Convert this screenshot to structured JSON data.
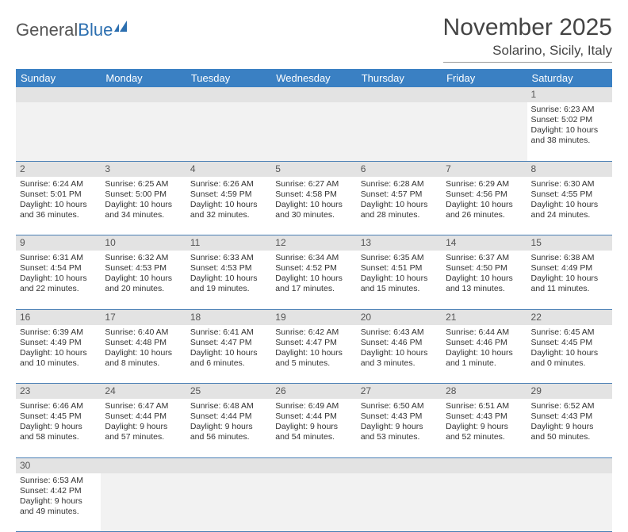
{
  "brand": {
    "part1": "General",
    "part2": "Blue"
  },
  "title": "November 2025",
  "subtitle": "Solarino, Sicily, Italy",
  "colors": {
    "header_bg": "#3a80c3",
    "header_fg": "#ffffff",
    "daynum_bg": "#e3e3e3",
    "rule": "#4a7fb5"
  },
  "daysOfWeek": [
    "Sunday",
    "Monday",
    "Tuesday",
    "Wednesday",
    "Thursday",
    "Friday",
    "Saturday"
  ],
  "weeks": [
    [
      null,
      null,
      null,
      null,
      null,
      null,
      {
        "n": "1",
        "sr": "6:23 AM",
        "ss": "5:02 PM",
        "dl": "10 hours and 38 minutes."
      }
    ],
    [
      {
        "n": "2",
        "sr": "6:24 AM",
        "ss": "5:01 PM",
        "dl": "10 hours and 36 minutes."
      },
      {
        "n": "3",
        "sr": "6:25 AM",
        "ss": "5:00 PM",
        "dl": "10 hours and 34 minutes."
      },
      {
        "n": "4",
        "sr": "6:26 AM",
        "ss": "4:59 PM",
        "dl": "10 hours and 32 minutes."
      },
      {
        "n": "5",
        "sr": "6:27 AM",
        "ss": "4:58 PM",
        "dl": "10 hours and 30 minutes."
      },
      {
        "n": "6",
        "sr": "6:28 AM",
        "ss": "4:57 PM",
        "dl": "10 hours and 28 minutes."
      },
      {
        "n": "7",
        "sr": "6:29 AM",
        "ss": "4:56 PM",
        "dl": "10 hours and 26 minutes."
      },
      {
        "n": "8",
        "sr": "6:30 AM",
        "ss": "4:55 PM",
        "dl": "10 hours and 24 minutes."
      }
    ],
    [
      {
        "n": "9",
        "sr": "6:31 AM",
        "ss": "4:54 PM",
        "dl": "10 hours and 22 minutes."
      },
      {
        "n": "10",
        "sr": "6:32 AM",
        "ss": "4:53 PM",
        "dl": "10 hours and 20 minutes."
      },
      {
        "n": "11",
        "sr": "6:33 AM",
        "ss": "4:53 PM",
        "dl": "10 hours and 19 minutes."
      },
      {
        "n": "12",
        "sr": "6:34 AM",
        "ss": "4:52 PM",
        "dl": "10 hours and 17 minutes."
      },
      {
        "n": "13",
        "sr": "6:35 AM",
        "ss": "4:51 PM",
        "dl": "10 hours and 15 minutes."
      },
      {
        "n": "14",
        "sr": "6:37 AM",
        "ss": "4:50 PM",
        "dl": "10 hours and 13 minutes."
      },
      {
        "n": "15",
        "sr": "6:38 AM",
        "ss": "4:49 PM",
        "dl": "10 hours and 11 minutes."
      }
    ],
    [
      {
        "n": "16",
        "sr": "6:39 AM",
        "ss": "4:49 PM",
        "dl": "10 hours and 10 minutes."
      },
      {
        "n": "17",
        "sr": "6:40 AM",
        "ss": "4:48 PM",
        "dl": "10 hours and 8 minutes."
      },
      {
        "n": "18",
        "sr": "6:41 AM",
        "ss": "4:47 PM",
        "dl": "10 hours and 6 minutes."
      },
      {
        "n": "19",
        "sr": "6:42 AM",
        "ss": "4:47 PM",
        "dl": "10 hours and 5 minutes."
      },
      {
        "n": "20",
        "sr": "6:43 AM",
        "ss": "4:46 PM",
        "dl": "10 hours and 3 minutes."
      },
      {
        "n": "21",
        "sr": "6:44 AM",
        "ss": "4:46 PM",
        "dl": "10 hours and 1 minute."
      },
      {
        "n": "22",
        "sr": "6:45 AM",
        "ss": "4:45 PM",
        "dl": "10 hours and 0 minutes."
      }
    ],
    [
      {
        "n": "23",
        "sr": "6:46 AM",
        "ss": "4:45 PM",
        "dl": "9 hours and 58 minutes."
      },
      {
        "n": "24",
        "sr": "6:47 AM",
        "ss": "4:44 PM",
        "dl": "9 hours and 57 minutes."
      },
      {
        "n": "25",
        "sr": "6:48 AM",
        "ss": "4:44 PM",
        "dl": "9 hours and 56 minutes."
      },
      {
        "n": "26",
        "sr": "6:49 AM",
        "ss": "4:44 PM",
        "dl": "9 hours and 54 minutes."
      },
      {
        "n": "27",
        "sr": "6:50 AM",
        "ss": "4:43 PM",
        "dl": "9 hours and 53 minutes."
      },
      {
        "n": "28",
        "sr": "6:51 AM",
        "ss": "4:43 PM",
        "dl": "9 hours and 52 minutes."
      },
      {
        "n": "29",
        "sr": "6:52 AM",
        "ss": "4:43 PM",
        "dl": "9 hours and 50 minutes."
      }
    ],
    [
      {
        "n": "30",
        "sr": "6:53 AM",
        "ss": "4:42 PM",
        "dl": "9 hours and 49 minutes."
      },
      null,
      null,
      null,
      null,
      null,
      null
    ]
  ],
  "labels": {
    "sunrise": "Sunrise:",
    "sunset": "Sunset:",
    "daylight": "Daylight:"
  }
}
